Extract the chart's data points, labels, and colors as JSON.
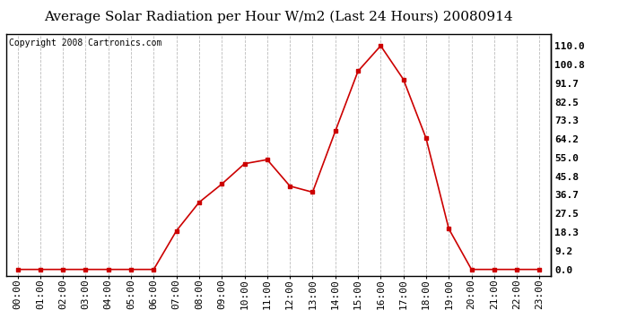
{
  "title": "Average Solar Radiation per Hour W/m2 (Last 24 Hours) 20080914",
  "copyright_text": "Copyright 2008 Cartronics.com",
  "x_labels": [
    "00:00",
    "01:00",
    "02:00",
    "03:00",
    "04:00",
    "05:00",
    "06:00",
    "07:00",
    "08:00",
    "09:00",
    "10:00",
    "11:00",
    "12:00",
    "13:00",
    "14:00",
    "15:00",
    "16:00",
    "17:00",
    "18:00",
    "19:00",
    "20:00",
    "21:00",
    "22:00",
    "23:00"
  ],
  "y_values": [
    0.0,
    0.0,
    0.0,
    0.0,
    0.0,
    0.0,
    0.0,
    19.0,
    33.0,
    42.0,
    52.0,
    54.0,
    41.0,
    38.0,
    68.0,
    97.5,
    110.0,
    93.5,
    64.5,
    20.0,
    0.0,
    0.0,
    0.0,
    0.0
  ],
  "line_color": "#cc0000",
  "marker": "s",
  "marker_size": 3,
  "background_color": "#ffffff",
  "plot_bg_color": "#ffffff",
  "grid_color": "#bbbbbb",
  "grid_style": "--",
  "yticks": [
    0.0,
    9.2,
    18.3,
    27.5,
    36.7,
    45.8,
    55.0,
    64.2,
    73.3,
    82.5,
    91.7,
    100.8,
    110.0
  ],
  "ylim": [
    -3,
    116
  ],
  "title_fontsize": 11,
  "tick_fontsize": 8,
  "copyright_fontsize": 7
}
